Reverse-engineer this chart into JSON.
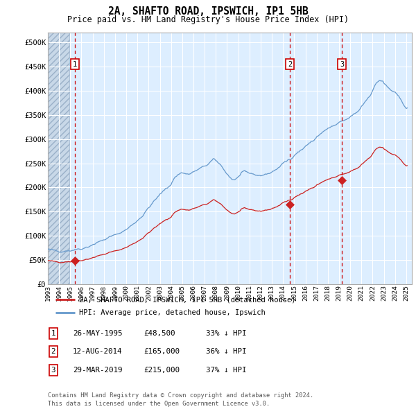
{
  "title": "2A, SHAFTO ROAD, IPSWICH, IP1 5HB",
  "subtitle": "Price paid vs. HM Land Registry's House Price Index (HPI)",
  "xlim": [
    1993.0,
    2025.5
  ],
  "ylim": [
    0,
    520000
  ],
  "yticks": [
    0,
    50000,
    100000,
    150000,
    200000,
    250000,
    300000,
    350000,
    400000,
    450000,
    500000
  ],
  "ytick_labels": [
    "£0",
    "£50K",
    "£100K",
    "£150K",
    "£200K",
    "£250K",
    "£300K",
    "£350K",
    "£400K",
    "£450K",
    "£500K"
  ],
  "sale_dates": [
    1995.397,
    2014.607,
    2019.247
  ],
  "sale_prices": [
    48500,
    165000,
    215000
  ],
  "sale_labels": [
    "1",
    "2",
    "3"
  ],
  "hpi_color": "#6699cc",
  "price_color": "#cc2222",
  "dashed_line_color": "#cc0000",
  "bg_color": "#ddeeff",
  "grid_color": "#ffffff",
  "legend_entries": [
    "2A, SHAFTO ROAD, IPSWICH, IP1 5HB (detached house)",
    "HPI: Average price, detached house, Ipswich"
  ],
  "table_rows": [
    [
      "1",
      "26-MAY-1995",
      "£48,500",
      "33% ↓ HPI"
    ],
    [
      "2",
      "12-AUG-2014",
      "£165,000",
      "36% ↓ HPI"
    ],
    [
      "3",
      "29-MAR-2019",
      "£215,000",
      "37% ↓ HPI"
    ]
  ],
  "footer": "Contains HM Land Registry data © Crown copyright and database right 2024.\nThis data is licensed under the Open Government Licence v3.0.",
  "hpi_anchors": [
    [
      1993.0,
      72000
    ],
    [
      1993.5,
      70000
    ],
    [
      1994.0,
      68500
    ],
    [
      1994.5,
      69000
    ],
    [
      1995.0,
      70000
    ],
    [
      1995.5,
      72000
    ],
    [
      1996.0,
      74000
    ],
    [
      1996.5,
      77000
    ],
    [
      1997.0,
      82000
    ],
    [
      1997.5,
      87000
    ],
    [
      1998.0,
      92000
    ],
    [
      1998.5,
      97000
    ],
    [
      1999.0,
      102000
    ],
    [
      1999.5,
      107000
    ],
    [
      2000.0,
      113000
    ],
    [
      2000.5,
      122000
    ],
    [
      2001.0,
      132000
    ],
    [
      2001.5,
      143000
    ],
    [
      2002.0,
      158000
    ],
    [
      2002.5,
      172000
    ],
    [
      2003.0,
      185000
    ],
    [
      2003.5,
      197000
    ],
    [
      2004.0,
      207000
    ],
    [
      2004.3,
      220000
    ],
    [
      2004.7,
      228000
    ],
    [
      2005.0,
      231000
    ],
    [
      2005.3,
      229000
    ],
    [
      2005.6,
      227000
    ],
    [
      2006.0,
      232000
    ],
    [
      2006.5,
      238000
    ],
    [
      2007.0,
      244000
    ],
    [
      2007.4,
      250000
    ],
    [
      2007.8,
      258000
    ],
    [
      2008.2,
      252000
    ],
    [
      2008.6,
      242000
    ],
    [
      2009.0,
      228000
    ],
    [
      2009.4,
      218000
    ],
    [
      2009.7,
      215000
    ],
    [
      2010.0,
      222000
    ],
    [
      2010.3,
      229000
    ],
    [
      2010.6,
      232000
    ],
    [
      2011.0,
      230000
    ],
    [
      2011.3,
      228000
    ],
    [
      2011.6,
      226000
    ],
    [
      2012.0,
      225000
    ],
    [
      2012.3,
      226000
    ],
    [
      2012.6,
      228000
    ],
    [
      2013.0,
      232000
    ],
    [
      2013.4,
      238000
    ],
    [
      2013.8,
      244000
    ],
    [
      2014.0,
      250000
    ],
    [
      2014.4,
      256000
    ],
    [
      2014.7,
      260000
    ],
    [
      2015.0,
      268000
    ],
    [
      2015.4,
      274000
    ],
    [
      2015.8,
      280000
    ],
    [
      2016.0,
      286000
    ],
    [
      2016.4,
      292000
    ],
    [
      2016.8,
      298000
    ],
    [
      2017.0,
      305000
    ],
    [
      2017.4,
      312000
    ],
    [
      2017.8,
      318000
    ],
    [
      2018.0,
      322000
    ],
    [
      2018.4,
      326000
    ],
    [
      2018.8,
      330000
    ],
    [
      2019.0,
      333000
    ],
    [
      2019.4,
      338000
    ],
    [
      2019.8,
      342000
    ],
    [
      2020.0,
      346000
    ],
    [
      2020.4,
      352000
    ],
    [
      2020.8,
      360000
    ],
    [
      2021.0,
      368000
    ],
    [
      2021.4,
      380000
    ],
    [
      2021.8,
      392000
    ],
    [
      2022.0,
      402000
    ],
    [
      2022.3,
      414000
    ],
    [
      2022.6,
      422000
    ],
    [
      2022.9,
      420000
    ],
    [
      2023.0,
      415000
    ],
    [
      2023.3,
      408000
    ],
    [
      2023.6,
      402000
    ],
    [
      2024.0,
      395000
    ],
    [
      2024.4,
      385000
    ],
    [
      2024.8,
      372000
    ],
    [
      2025.0,
      365000
    ]
  ]
}
